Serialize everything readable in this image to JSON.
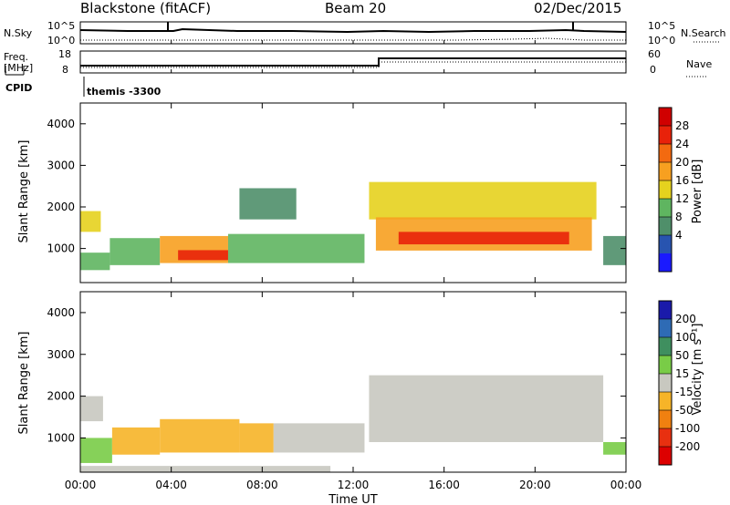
{
  "header": {
    "station": "Blackstone (fitACF)",
    "beam": "Beam 20",
    "date": "02/Dec/2015"
  },
  "strip": {
    "nsky_label": "N.Sky",
    "nsearch_label": "N.Search",
    "left_top": "10^5",
    "left_bot": "10^0",
    "right_top": "10^5",
    "right_bot": "10^0",
    "freq_label_1": "Freq.",
    "freq_label_2": "[MHz]",
    "freq_top": "18",
    "freq_bot": "8",
    "nave_label": "Nave",
    "nave_top": "60",
    "nave_bot": "0",
    "cpid_label": "CPID",
    "cpid_value": "themis -3300"
  },
  "axes": {
    "ylabel": "Slant Range [km]",
    "xlabel": "Time UT",
    "yticks": [
      "1000",
      "2000",
      "3000",
      "4000"
    ],
    "xticks": [
      "00:00",
      "04:00",
      "08:00",
      "12:00",
      "16:00",
      "20:00",
      "00:00"
    ]
  },
  "colorbars": {
    "power": {
      "title": "Power [dB]",
      "labels": [
        "4",
        "8",
        "12",
        "16",
        "20",
        "24",
        "28"
      ],
      "colors": [
        "#1a1aff",
        "#2854b0",
        "#4f8f6a",
        "#5fb560",
        "#e6d21e",
        "#f7a020",
        "#f36a10",
        "#e8220a",
        "#d00000"
      ]
    },
    "velocity": {
      "title": "Velocity [m s⁻¹]",
      "labels": [
        "200",
        "100",
        "50",
        "15",
        "-15",
        "-50",
        "-100",
        "-200"
      ],
      "colors": [
        "#1a1aaa",
        "#2e6bb5",
        "#3f8f5f",
        "#79cc47",
        "#c8c8c0",
        "#f6b428",
        "#f08010",
        "#e83010",
        "#dd0000"
      ]
    }
  },
  "chart_data": [
    {
      "type": "heatmap",
      "title": "Power [dB]",
      "xlabel": "Time UT",
      "ylabel": "Slant Range [km]",
      "xlim": [
        0,
        24
      ],
      "ylim": [
        180,
        4500
      ],
      "zlim": [
        0,
        30
      ],
      "series": [
        {
          "time_start": 0.0,
          "time_end": 0.9,
          "range_low": 1400,
          "range_high": 1900,
          "value": 14
        },
        {
          "time_start": 0.0,
          "time_end": 1.3,
          "range_low": 480,
          "range_high": 900,
          "value": 10
        },
        {
          "time_start": 1.3,
          "time_end": 3.5,
          "range_low": 600,
          "range_high": 1250,
          "value": 13
        },
        {
          "time_start": 3.5,
          "time_end": 6.5,
          "range_low": 650,
          "range_high": 1300,
          "value": 17
        },
        {
          "time_start": 4.3,
          "time_end": 6.5,
          "range_low": 720,
          "range_high": 960,
          "value": 25
        },
        {
          "time_start": 6.5,
          "time_end": 12.5,
          "range_low": 650,
          "range_high": 1350,
          "value": 12
        },
        {
          "time_start": 7.0,
          "time_end": 9.5,
          "range_low": 1700,
          "range_high": 2450,
          "value": 8
        },
        {
          "time_start": 12.7,
          "time_end": 22.7,
          "range_low": 1700,
          "range_high": 2600,
          "value": 14
        },
        {
          "time_start": 13.0,
          "time_end": 22.5,
          "range_low": 950,
          "range_high": 1750,
          "value": 18
        },
        {
          "time_start": 14.0,
          "time_end": 21.5,
          "range_low": 1100,
          "range_high": 1400,
          "value": 26
        },
        {
          "time_start": 23.0,
          "time_end": 24.0,
          "range_low": 600,
          "range_high": 1300,
          "value": 8
        }
      ]
    },
    {
      "type": "heatmap",
      "title": "Velocity [m s⁻¹]",
      "xlabel": "Time UT",
      "ylabel": "Slant Range [km]",
      "xlim": [
        0,
        24
      ],
      "ylim": [
        180,
        4500
      ],
      "zlim": [
        -200,
        200
      ],
      "series": [
        {
          "time_start": 0.0,
          "time_end": 1.0,
          "range_low": 1400,
          "range_high": 2000,
          "value": 0
        },
        {
          "time_start": 0.0,
          "time_end": 1.4,
          "range_low": 400,
          "range_high": 1000,
          "value": 30
        },
        {
          "time_start": 1.4,
          "time_end": 3.5,
          "range_low": 600,
          "range_high": 1250,
          "value": -40
        },
        {
          "time_start": 3.5,
          "time_end": 7.0,
          "range_low": 650,
          "range_high": 1450,
          "value": -60
        },
        {
          "time_start": 7.0,
          "time_end": 8.5,
          "range_low": 650,
          "range_high": 1350,
          "value": -30
        },
        {
          "time_start": 8.5,
          "time_end": 12.5,
          "range_low": 650,
          "range_high": 1350,
          "value": 0
        },
        {
          "time_start": 0.0,
          "time_end": 11.0,
          "range_low": 180,
          "range_high": 330,
          "value": -20
        },
        {
          "time_start": 12.7,
          "time_end": 23.0,
          "range_low": 900,
          "range_high": 2500,
          "value": 0
        },
        {
          "time_start": 23.0,
          "time_end": 24.0,
          "range_low": 600,
          "range_high": 900,
          "value": 30
        }
      ]
    }
  ]
}
